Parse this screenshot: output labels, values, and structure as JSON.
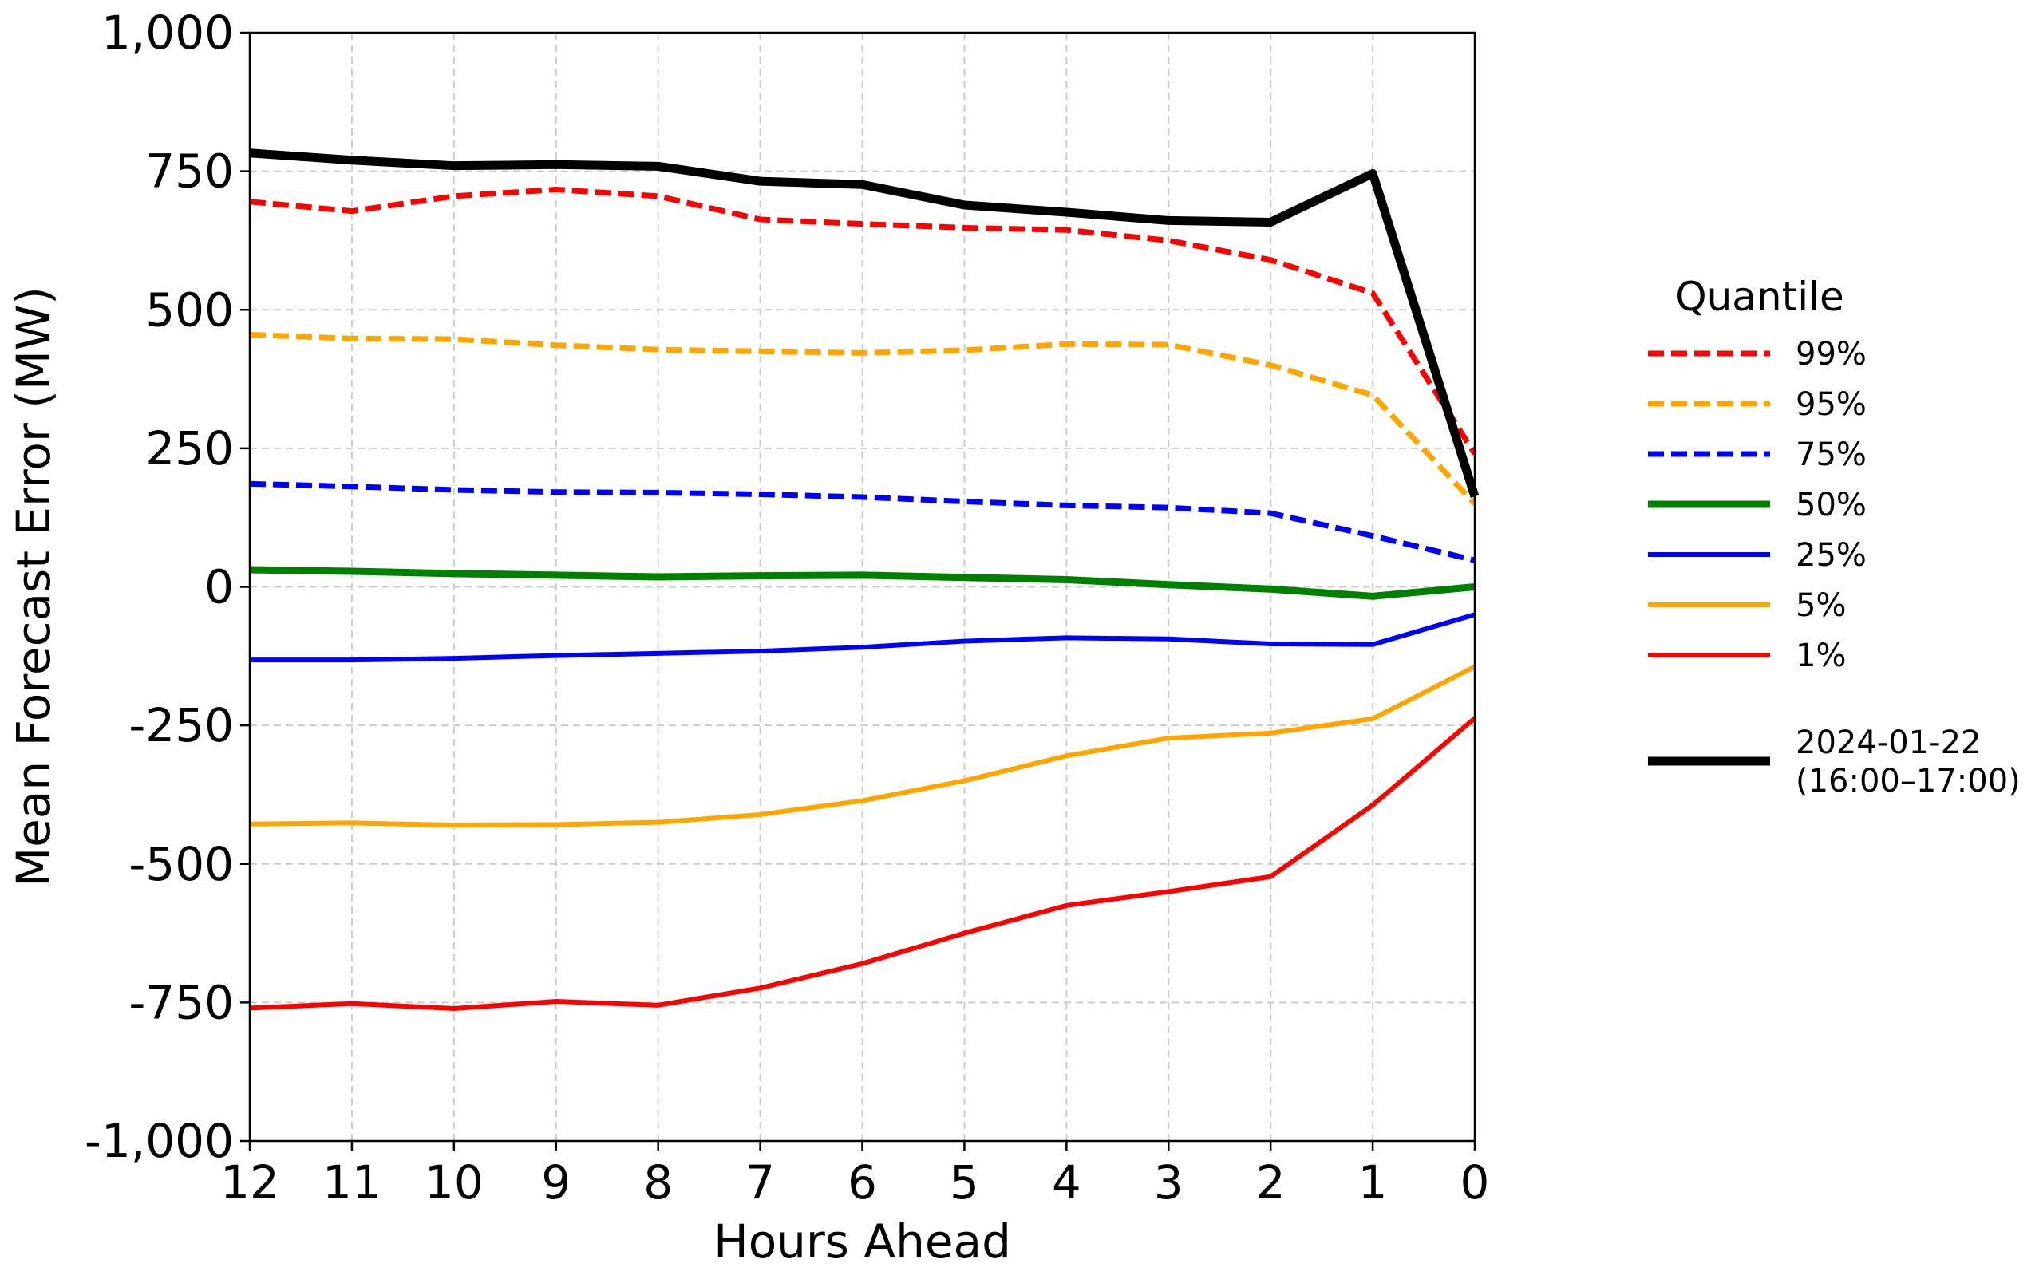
{
  "chart_data": {
    "type": "line",
    "title": "",
    "xlabel": "Hours Ahead",
    "ylabel": "Mean Forecast Error (MW)",
    "x": [
      12,
      11,
      10,
      9,
      8,
      7,
      6,
      5,
      4,
      3,
      2,
      1,
      0
    ],
    "x_tick_labels": [
      "12",
      "11",
      "10",
      "9",
      "8",
      "7",
      "6",
      "5",
      "4",
      "3",
      "2",
      "1",
      "0"
    ],
    "x_reversed": true,
    "xlim": [
      12,
      0
    ],
    "ylim": [
      -1000,
      1000
    ],
    "y_ticks": [
      1000,
      750,
      500,
      250,
      0,
      -250,
      -500,
      -750,
      -1000
    ],
    "y_tick_labels": [
      "1,000",
      "750",
      "500",
      "250",
      "0",
      "-250",
      "-500",
      "-750",
      "-1,000"
    ],
    "grid": true,
    "legend_title": "Quantile",
    "legend_position": "right outside",
    "series": [
      {
        "name": "99%",
        "color": "#ff0000",
        "dashed": true,
        "width": 7,
        "values": [
          695,
          678,
          705,
          717,
          705,
          663,
          655,
          648,
          644,
          625,
          590,
          530,
          240
        ]
      },
      {
        "name": "95%",
        "color": "#ffa500",
        "dashed": true,
        "width": 7,
        "values": [
          455,
          448,
          447,
          436,
          428,
          425,
          422,
          427,
          438,
          437,
          400,
          346,
          150
        ]
      },
      {
        "name": "75%",
        "color": "#0000ff",
        "dashed": true,
        "width": 7,
        "values": [
          186,
          181,
          175,
          171,
          170,
          167,
          162,
          154,
          147,
          143,
          133,
          92,
          48
        ]
      },
      {
        "name": "50%",
        "color": "#008000",
        "dashed": false,
        "width": 9,
        "values": [
          31,
          28,
          24,
          21,
          18,
          20,
          21,
          17,
          13,
          4,
          -4,
          -17,
          0
        ]
      },
      {
        "name": "25%",
        "color": "#0000ff",
        "dashed": false,
        "width": 6,
        "values": [
          -132,
          -132,
          -129,
          -124,
          -120,
          -116,
          -109,
          -98,
          -92,
          -94,
          -103,
          -104,
          -50
        ]
      },
      {
        "name": "5%",
        "color": "#ffa500",
        "dashed": false,
        "width": 6,
        "values": [
          -428,
          -426,
          -430,
          -429,
          -425,
          -411,
          -386,
          -350,
          -305,
          -273,
          -264,
          -238,
          -144
        ]
      },
      {
        "name": "1%",
        "color": "#ff0000",
        "dashed": false,
        "width": 6,
        "values": [
          -760,
          -752,
          -761,
          -748,
          -755,
          -724,
          -680,
          -625,
          -575,
          -550,
          -523,
          -394,
          -237
        ]
      },
      {
        "name": "2024-01-22\n(16:00–17:00)",
        "color": "#000000",
        "dashed": false,
        "width": 11,
        "values": [
          783,
          770,
          760,
          762,
          759,
          732,
          726,
          689,
          676,
          661,
          658,
          746,
          163
        ]
      }
    ]
  }
}
